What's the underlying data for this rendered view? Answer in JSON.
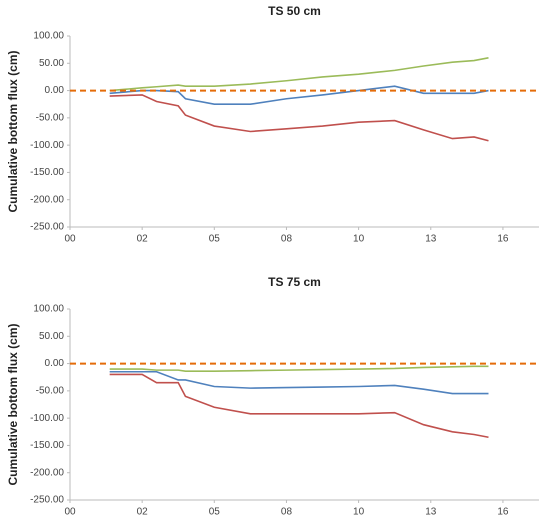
{
  "chart_data": [
    {
      "type": "line",
      "title": "TS 50 cm",
      "ylabel": "Cumulative bottom flux (cm)",
      "x": [
        0.55,
        1,
        1.2,
        1.5,
        1.6,
        2,
        2.5,
        3,
        3.5,
        4,
        4.5,
        4.9,
        5.3,
        5.6,
        5.8
      ],
      "series": [
        {
          "color": "#9bbb59",
          "values": [
            0,
            5,
            7,
            10,
            8,
            8,
            12,
            18,
            25,
            30,
            37,
            45,
            52,
            55,
            60
          ]
        },
        {
          "color": "#4f81bd",
          "values": [
            -5,
            0,
            0,
            -2,
            -15,
            -25,
            -25,
            -15,
            -8,
            0,
            8,
            -5,
            -5,
            -5,
            0
          ]
        },
        {
          "color": "#c0504d",
          "values": [
            -10,
            -8,
            -20,
            -28,
            -45,
            -65,
            -75,
            -70,
            -65,
            -58,
            -55,
            -72,
            -88,
            -85,
            -92
          ]
        }
      ],
      "reference_line": {
        "value": 0,
        "color": "#e46c0a",
        "dashed": true
      },
      "xlim": [
        0,
        6.5
      ],
      "xticks": [
        {
          "value": 0,
          "label": "00"
        },
        {
          "value": 1,
          "label": "02"
        },
        {
          "value": 2,
          "label": "05"
        },
        {
          "value": 3,
          "label": "08"
        },
        {
          "value": 4,
          "label": "10"
        },
        {
          "value": 5,
          "label": "13"
        },
        {
          "value": 6,
          "label": "16"
        }
      ],
      "ylim": [
        -250,
        100
      ],
      "yticks": [
        {
          "value": 100,
          "label": "100.00"
        },
        {
          "value": 50,
          "label": "50.00"
        },
        {
          "value": 0,
          "label": "0.00"
        },
        {
          "value": -50,
          "label": "-50.00"
        },
        {
          "value": -100,
          "label": "-100.00"
        },
        {
          "value": -150,
          "label": "-150.00"
        },
        {
          "value": -200,
          "label": "-200.00"
        },
        {
          "value": -250,
          "label": "-250.00"
        }
      ],
      "grid": false
    },
    {
      "type": "line",
      "title": "TS 75 cm",
      "ylabel": "Cumulative bottom flux (cm)",
      "x": [
        0.55,
        1,
        1.2,
        1.5,
        1.6,
        2,
        2.5,
        3,
        3.5,
        4,
        4.5,
        4.9,
        5.3,
        5.6,
        5.8
      ],
      "series": [
        {
          "color": "#9bbb59",
          "values": [
            -10,
            -10,
            -12,
            -12,
            -14,
            -14,
            -13,
            -12,
            -11,
            -10,
            -9,
            -7,
            -6,
            -5,
            -5
          ]
        },
        {
          "color": "#4f81bd",
          "values": [
            -15,
            -15,
            -15,
            -30,
            -30,
            -42,
            -45,
            -44,
            -43,
            -42,
            -40,
            -47,
            -55,
            -55,
            -55
          ]
        },
        {
          "color": "#c0504d",
          "values": [
            -20,
            -20,
            -35,
            -35,
            -60,
            -80,
            -92,
            -92,
            -92,
            -92,
            -90,
            -112,
            -125,
            -130,
            -135
          ]
        }
      ],
      "reference_line": {
        "value": 0,
        "color": "#e46c0a",
        "dashed": true
      },
      "xlim": [
        0,
        6.5
      ],
      "xticks": [
        {
          "value": 0,
          "label": "00"
        },
        {
          "value": 1,
          "label": "02"
        },
        {
          "value": 2,
          "label": "05"
        },
        {
          "value": 3,
          "label": "08"
        },
        {
          "value": 4,
          "label": "10"
        },
        {
          "value": 5,
          "label": "13"
        },
        {
          "value": 6,
          "label": "16"
        }
      ],
      "ylim": [
        -250,
        100
      ],
      "yticks": [
        {
          "value": 100,
          "label": "100.00"
        },
        {
          "value": 50,
          "label": "50.00"
        },
        {
          "value": 0,
          "label": "0.00"
        },
        {
          "value": -50,
          "label": "-50.00"
        },
        {
          "value": -100,
          "label": "-100.00"
        },
        {
          "value": -150,
          "label": "-150.00"
        },
        {
          "value": -200,
          "label": "-200.00"
        },
        {
          "value": -250,
          "label": "-250.00"
        }
      ],
      "grid": false
    }
  ]
}
